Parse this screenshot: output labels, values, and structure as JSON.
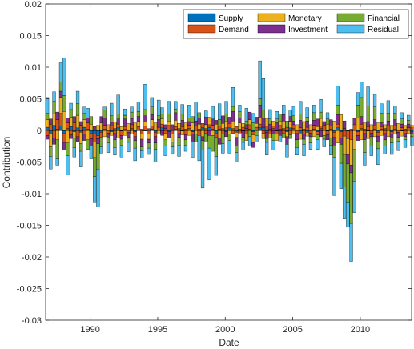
{
  "chart_data": {
    "type": "bar",
    "stacked": true,
    "xlabel": "Date",
    "ylabel": "Contribution",
    "xlim": [
      1986.7,
      2013.8
    ],
    "ylim": [
      -0.03,
      0.02
    ],
    "y_ticks": [
      0.02,
      0.015,
      0.01,
      0.005,
      0,
      -0.005,
      -0.01,
      -0.015,
      -0.02,
      -0.025,
      -0.03
    ],
    "y_tick_labels": [
      "0.02",
      "0.015",
      "0.01",
      "0.005",
      "0",
      "-0.005",
      "-0.01",
      "-0.015",
      "-0.02",
      "-0.025",
      "-0.03"
    ],
    "x_ticks": [
      1990,
      1995,
      2000,
      2005,
      2010
    ],
    "x_tick_labels": [
      "1990",
      "1995",
      "2000",
      "2005",
      "2010"
    ],
    "grid": false,
    "legend_position": "top-right",
    "legend_columns": 3,
    "legend": [
      "Supply",
      "Demand",
      "Monetary",
      "Investment",
      "Financial",
      "Residual"
    ],
    "colors": {
      "Supply": "#0072BD",
      "Demand": "#D95319",
      "Monetary": "#EDB120",
      "Investment": "#7E2F8E",
      "Financial": "#77AC30",
      "Residual": "#4DBEEE"
    },
    "period_start": "1986Q4",
    "period_end": "2013Q4",
    "frequency": "quarterly",
    "series": [
      {
        "name": "Supply",
        "values": [
          0.0005,
          -0.0006,
          0.0008,
          0.0002,
          0.0007,
          -0.0004,
          0.0003,
          0.0006,
          -0.0002,
          0.0004,
          -0.0003,
          0.0005,
          0.0002,
          -0.0004,
          -0.0006,
          -0.0008,
          -0.0003,
          0.0002,
          0.0001,
          -0.0002,
          0.0003,
          0.0004,
          -0.0001,
          0.0002,
          0.0001,
          0.0003,
          -0.0002,
          0.0001,
          0.0002,
          -0.0001,
          0.0003,
          0.0002,
          -0.0003,
          0.0001,
          0.0004,
          0.0003,
          -0.0002,
          0.0001,
          0.0002,
          0.0003,
          -0.0001,
          0.0002,
          0.0003,
          -0.0002,
          0.0001,
          0.0002,
          0.0004,
          0.0003,
          0.0005,
          0.0002,
          -0.0004,
          0.0002,
          0.0003,
          -0.0002,
          0.0004,
          0.0003,
          -0.0003,
          0.0002,
          -0.0001,
          0.0003,
          0.0002,
          -0.0002,
          0.0001,
          0.0004,
          0.0005,
          -0.0003,
          0.0002,
          0.0003,
          -0.0001,
          0.0002,
          0.0003,
          -0.0002,
          0.0004,
          0.0003,
          0.0001,
          -0.0004,
          0.0002,
          -0.0003,
          0.0001,
          0.0002,
          -0.0002,
          0.0003,
          0.0001,
          -0.0001,
          0.0002,
          -0.0003,
          0.0004,
          -0.0002,
          0.0003,
          -0.0001,
          0.0002,
          0.0001,
          -0.0002,
          0.0003,
          0.0002,
          -0.0001,
          0.0001,
          0.0002,
          -0.0003,
          0.0002,
          0.0003,
          0.0001,
          -0.0002,
          0.0002,
          0.0001,
          -0.0001,
          0.0002,
          0.0001,
          -0.0002
        ]
      },
      {
        "name": "Demand",
        "values": [
          -0.0008,
          0.001,
          -0.0012,
          0.0015,
          0.002,
          -0.0015,
          0.0009,
          -0.0007,
          0.0012,
          -0.001,
          0.0008,
          -0.0006,
          0.001,
          -0.0009,
          -0.0012,
          -0.0005,
          -0.0008,
          0.0006,
          -0.0004,
          0.0007,
          -0.0005,
          0.0006,
          -0.0007,
          0.0004,
          -0.0003,
          0.0006,
          -0.0008,
          0.0005,
          -0.0004,
          0.0007,
          -0.0006,
          0.0005,
          -0.0007,
          0.0004,
          0.0006,
          -0.0005,
          0.0008,
          -0.0006,
          0.0004,
          -0.0005,
          0.0006,
          -0.0007,
          0.0005,
          -0.0004,
          0.0006,
          -0.0008,
          0.0007,
          -0.0005,
          0.0004,
          0.0006,
          -0.0007,
          0.0005,
          -0.0006,
          0.0004,
          0.0007,
          -0.0005,
          0.0006,
          -0.0004,
          0.0005,
          -0.0006,
          0.0007,
          -0.0005,
          0.0004,
          0.0006,
          -0.0005,
          0.0007,
          -0.0006,
          0.0004,
          -0.0005,
          0.0006,
          -0.0004,
          0.0005,
          -0.0007,
          0.0006,
          -0.0005,
          0.0004,
          -0.0006,
          0.0005,
          -0.0004,
          0.0006,
          -0.0005,
          0.0004,
          0.0007,
          -0.0006,
          0.0005,
          -0.0008,
          0.0006,
          -0.001,
          -0.0009,
          -0.0012,
          -0.0015,
          0.0008,
          -0.0006,
          0.0007,
          -0.0005,
          0.0006,
          -0.0004,
          0.0005,
          -0.0006,
          0.0004,
          -0.0005,
          0.0006,
          -0.0004,
          0.0005,
          -0.0003,
          0.0004,
          -0.0005,
          0.0003,
          0.0004
        ]
      },
      {
        "name": "Monetary",
        "values": [
          0.0012,
          -0.002,
          0.0018,
          -0.0015,
          0.0025,
          0.003,
          -0.002,
          0.0015,
          -0.001,
          0.002,
          -0.0018,
          0.0012,
          -0.0015,
          0.001,
          -0.0025,
          0.0008,
          0.0012,
          -0.001,
          0.0008,
          -0.0006,
          0.001,
          -0.0012,
          0.0006,
          -0.0008,
          0.001,
          -0.0006,
          0.0012,
          0.0008,
          -0.001,
          0.0006,
          -0.0008,
          0.001,
          0.0012,
          -0.0006,
          0.0008,
          -0.001,
          0.0006,
          -0.0012,
          0.001,
          0.0008,
          -0.0006,
          0.001,
          -0.0008,
          0.0012,
          -0.0006,
          0.0008,
          -0.001,
          0.0006,
          0.0012,
          -0.0008,
          0.001,
          -0.0012,
          0.0008,
          0.001,
          -0.0006,
          0.0012,
          -0.0008,
          0.001,
          0.0006,
          -0.001,
          0.0008,
          -0.0012,
          0.0006,
          0.001,
          -0.0008,
          0.0012,
          -0.0006,
          0.0008,
          -0.001,
          0.0006,
          0.0012,
          -0.0008,
          0.001,
          -0.0006,
          0.0008,
          -0.001,
          0.0012,
          -0.0006,
          0.0008,
          -0.001,
          0.0006,
          0.0012,
          -0.0008,
          0.001,
          -0.0012,
          0.0015,
          -0.002,
          0.0025,
          -0.003,
          -0.0025,
          -0.004,
          -0.003,
          0.002,
          -0.0015,
          0.001,
          -0.0012,
          0.0008,
          -0.001,
          0.0012,
          -0.0008,
          0.0006,
          -0.001,
          0.0008,
          -0.0006,
          0.001,
          -0.0008,
          0.0006,
          -0.0005,
          0.0004
        ]
      },
      {
        "name": "Investment",
        "values": [
          -0.0006,
          0.0008,
          -0.001,
          0.0012,
          0.001,
          -0.0012,
          0.0008,
          -0.0006,
          0.001,
          -0.0008,
          0.0006,
          -0.001,
          0.0008,
          -0.0012,
          0.0006,
          -0.0008,
          0.001,
          0.0012,
          -0.0008,
          0.0006,
          -0.001,
          0.0008,
          -0.0006,
          0.0012,
          -0.0008,
          0.001,
          -0.0006,
          0.0008,
          -0.0012,
          0.001,
          -0.0006,
          0.0008,
          -0.001,
          0.0012,
          -0.0008,
          0.0006,
          -0.001,
          0.0008,
          0.0012,
          -0.0006,
          0.001,
          -0.0008,
          0.0006,
          -0.0012,
          0.0008,
          0.001,
          -0.0006,
          0.0012,
          -0.0008,
          0.001,
          0.0006,
          -0.001,
          0.0012,
          -0.0008,
          0.001,
          0.0015,
          -0.0012,
          0.0008,
          -0.001,
          0.0006,
          0.0012,
          -0.0008,
          0.001,
          0.002,
          0.0015,
          -0.001,
          0.0008,
          -0.0006,
          0.0012,
          -0.0008,
          0.001,
          -0.0012,
          0.0008,
          0.0006,
          -0.001,
          0.0012,
          -0.0008,
          0.001,
          -0.0006,
          0.0008,
          0.0012,
          -0.001,
          0.0006,
          -0.0008,
          0.001,
          -0.0012,
          0.0015,
          -0.001,
          0.0012,
          -0.0015,
          -0.0012,
          0.001,
          -0.0008,
          0.0012,
          -0.001,
          0.0008,
          -0.0006,
          0.001,
          -0.0008,
          0.0006,
          -0.001,
          0.0008,
          -0.0006,
          0.001,
          -0.0008,
          0.0006,
          -0.0005,
          0.0006,
          -0.0004
        ]
      },
      {
        "name": "Financial",
        "values": [
          0.001,
          -0.0015,
          0.002,
          -0.003,
          0.0015,
          0.0025,
          -0.002,
          0.0012,
          -0.0015,
          0.0018,
          -0.0012,
          0.001,
          -0.0015,
          0.0012,
          -0.003,
          -0.004,
          -0.0015,
          0.0012,
          -0.0008,
          0.001,
          -0.0012,
          0.0008,
          -0.001,
          0.0006,
          -0.0008,
          0.001,
          -0.0012,
          0.0008,
          -0.0006,
          0.001,
          -0.0008,
          0.0012,
          -0.001,
          0.0006,
          0.0008,
          -0.001,
          0.0012,
          -0.0008,
          0.0006,
          -0.0012,
          0.001,
          -0.0008,
          0.0006,
          0.001,
          -0.0012,
          0.0008,
          -0.0015,
          -0.0012,
          -0.002,
          -0.0025,
          -0.003,
          0.001,
          -0.0015,
          0.0012,
          -0.001,
          0.0008,
          -0.0012,
          0.001,
          -0.0008,
          0.0006,
          -0.001,
          0.0012,
          -0.0008,
          0.001,
          0.0012,
          -0.0006,
          0.0008,
          -0.001,
          0.0006,
          0.0012,
          -0.0008,
          0.001,
          -0.0006,
          0.0008,
          -0.0012,
          0.001,
          -0.0008,
          0.0006,
          -0.001,
          0.0012,
          -0.0008,
          0.001,
          -0.0006,
          0.0008,
          -0.0012,
          -0.002,
          0.0015,
          -0.003,
          -0.005,
          -0.006,
          -0.008,
          -0.005,
          0.002,
          0.003,
          -0.002,
          0.0025,
          -0.0015,
          0.002,
          -0.0012,
          0.0015,
          -0.001,
          0.0012,
          -0.0008,
          0.001,
          -0.0006,
          0.0008,
          -0.0005,
          0.0006,
          -0.0004
        ]
      },
      {
        "name": "Residual",
        "values": [
          0.0025,
          -0.002,
          0.0015,
          -0.001,
          0.003,
          0.006,
          -0.003,
          0.001,
          -0.0015,
          0.002,
          -0.0025,
          0.001,
          0.0015,
          -0.002,
          -0.004,
          -0.006,
          -0.001,
          0.0005,
          -0.0015,
          0.002,
          -0.0012,
          0.003,
          -0.0018,
          0.001,
          -0.0015,
          0.0008,
          -0.002,
          0.0015,
          -0.0012,
          0.004,
          -0.001,
          0.0015,
          -0.002,
          0.0025,
          0.001,
          -0.0015,
          0.002,
          -0.001,
          0.0012,
          -0.0018,
          0.0015,
          -0.001,
          0.002,
          -0.0025,
          0.003,
          -0.004,
          -0.006,
          0.001,
          -0.005,
          0.002,
          -0.003,
          0.0025,
          -0.0015,
          0.002,
          -0.002,
          0.003,
          -0.0015,
          0.001,
          -0.0012,
          0.002,
          -0.0015,
          0.0015,
          -0.001,
          0.006,
          0.005,
          -0.002,
          0.0015,
          -0.0015,
          0.0012,
          -0.001,
          0.0015,
          -0.002,
          0.001,
          0.0015,
          -0.0012,
          0.002,
          -0.0018,
          0.0015,
          -0.001,
          0.0012,
          -0.0015,
          0.002,
          -0.0012,
          0.001,
          -0.0015,
          -0.006,
          0.003,
          -0.004,
          -0.005,
          -0.004,
          -0.006,
          -0.005,
          0.002,
          0.0025,
          -0.002,
          0.003,
          -0.0015,
          0.002,
          -0.0025,
          0.0015,
          -0.0012,
          0.002,
          -0.0018,
          0.0012,
          -0.0015,
          0.001,
          -0.0012,
          0.0008,
          -0.0015
        ]
      }
    ]
  }
}
